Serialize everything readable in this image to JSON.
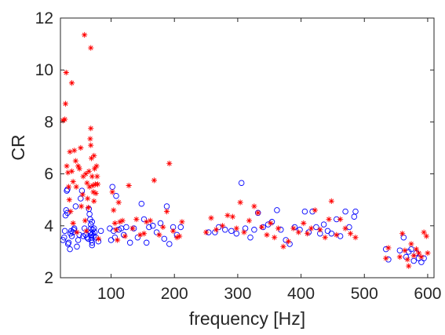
{
  "chart_data": {
    "type": "scatter",
    "title": "",
    "xlabel": "frequency [Hz]",
    "ylabel": "CR",
    "xlim": [
      20,
      610
    ],
    "ylim": [
      2,
      12
    ],
    "xticks": [
      100,
      200,
      300,
      400,
      500,
      600
    ],
    "yticks": [
      2,
      4,
      6,
      8,
      10,
      12
    ],
    "grid": false,
    "legend": "none",
    "series": [
      {
        "marker": "asterisk",
        "color": "#ff0000",
        "points": [
          [
            24,
            8.05
          ],
          [
            27,
            8.1
          ],
          [
            29,
            9.9
          ],
          [
            28,
            8.7
          ],
          [
            30,
            6.3
          ],
          [
            32,
            6.05
          ],
          [
            33,
            5.5
          ],
          [
            34,
            5.0
          ],
          [
            35,
            6.85
          ],
          [
            36,
            4.55
          ],
          [
            38,
            9.5
          ],
          [
            38,
            6.1
          ],
          [
            40,
            5.7
          ],
          [
            40,
            4.1
          ],
          [
            42,
            6.9
          ],
          [
            44,
            6.5
          ],
          [
            45,
            5.5
          ],
          [
            46,
            3.75
          ],
          [
            48,
            6.3
          ],
          [
            50,
            6.2
          ],
          [
            52,
            7.0
          ],
          [
            53,
            4.75
          ],
          [
            55,
            5.2
          ],
          [
            56,
            5.9
          ],
          [
            58,
            11.35
          ],
          [
            59,
            4.2
          ],
          [
            60,
            6.0
          ],
          [
            61,
            3.8
          ],
          [
            62,
            5.65
          ],
          [
            63,
            5.05
          ],
          [
            64,
            4.7
          ],
          [
            65,
            6.1
          ],
          [
            66,
            5.5
          ],
          [
            67,
            7.35
          ],
          [
            68,
            7.1
          ],
          [
            68,
            10.85
          ],
          [
            68,
            7.75
          ],
          [
            69,
            6.6
          ],
          [
            70,
            5.9
          ],
          [
            71,
            5.55
          ],
          [
            72,
            5.3
          ],
          [
            73,
            4.95
          ],
          [
            73,
            6.7
          ],
          [
            74,
            6.2
          ],
          [
            75,
            5.6
          ],
          [
            76,
            5.25
          ],
          [
            77,
            6.3
          ],
          [
            78,
            5.9
          ],
          [
            79,
            5.6
          ],
          [
            80,
            3.5
          ],
          [
            102,
            5.3
          ],
          [
            104,
            4.6
          ],
          [
            106,
            4.1
          ],
          [
            108,
            3.85
          ],
          [
            110,
            3.45
          ],
          [
            112,
            4.9
          ],
          [
            114,
            4.15
          ],
          [
            118,
            4.2
          ],
          [
            122,
            3.6
          ],
          [
            128,
            5.55
          ],
          [
            134,
            3.9
          ],
          [
            140,
            4.25
          ],
          [
            146,
            3.65
          ],
          [
            152,
            3.7
          ],
          [
            156,
            4.15
          ],
          [
            162,
            4.2
          ],
          [
            168,
            5.75
          ],
          [
            176,
            3.65
          ],
          [
            182,
            3.95
          ],
          [
            188,
            4.55
          ],
          [
            192,
            6.4
          ],
          [
            198,
            3.8
          ],
          [
            204,
            3.55
          ],
          [
            208,
            3.6
          ],
          [
            212,
            4.15
          ],
          [
            250,
            3.75
          ],
          [
            258,
            4.3
          ],
          [
            266,
            3.85
          ],
          [
            276,
            4.0
          ],
          [
            284,
            4.4
          ],
          [
            292,
            4.35
          ],
          [
            298,
            3.9
          ],
          [
            304,
            4.9
          ],
          [
            310,
            3.75
          ],
          [
            318,
            4.2
          ],
          [
            326,
            4.75
          ],
          [
            332,
            4.5
          ],
          [
            338,
            3.95
          ],
          [
            346,
            3.65
          ],
          [
            352,
            4.1
          ],
          [
            358,
            3.55
          ],
          [
            364,
            3.9
          ],
          [
            372,
            3.2
          ],
          [
            380,
            3.4
          ],
          [
            388,
            3.9
          ],
          [
            396,
            3.75
          ],
          [
            404,
            4.1
          ],
          [
            410,
            3.7
          ],
          [
            416,
            3.9
          ],
          [
            422,
            4.6
          ],
          [
            430,
            3.85
          ],
          [
            438,
            3.55
          ],
          [
            444,
            4.25
          ],
          [
            448,
            4.95
          ],
          [
            456,
            3.65
          ],
          [
            462,
            4.25
          ],
          [
            470,
            3.9
          ],
          [
            478,
            3.7
          ],
          [
            486,
            3.55
          ],
          [
            534,
            2.75
          ],
          [
            538,
            3.15
          ],
          [
            556,
            2.8
          ],
          [
            560,
            3.7
          ],
          [
            564,
            3.05
          ],
          [
            568,
            2.7
          ],
          [
            570,
            2.45
          ],
          [
            574,
            3.3
          ],
          [
            578,
            2.85
          ],
          [
            582,
            3.1
          ],
          [
            586,
            2.95
          ],
          [
            590,
            2.8
          ],
          [
            594,
            3.75
          ],
          [
            598,
            3.6
          ],
          [
            600,
            2.95
          ]
        ]
      },
      {
        "marker": "circle",
        "color": "#0000ff",
        "points": [
          [
            24,
            3.45
          ],
          [
            26,
            3.55
          ],
          [
            27,
            3.8
          ],
          [
            28,
            4.4
          ],
          [
            29,
            4.6
          ],
          [
            30,
            5.35
          ],
          [
            31,
            5.4
          ],
          [
            31,
            4.5
          ],
          [
            32,
            3.3
          ],
          [
            33,
            3.35
          ],
          [
            35,
            3.1
          ],
          [
            36,
            3.7
          ],
          [
            37,
            3.8
          ],
          [
            38,
            3.6
          ],
          [
            40,
            3.75
          ],
          [
            41,
            3.85
          ],
          [
            42,
            3.9
          ],
          [
            44,
            4.75
          ],
          [
            46,
            3.2
          ],
          [
            48,
            3.45
          ],
          [
            50,
            3.65
          ],
          [
            52,
            5.05
          ],
          [
            54,
            5.35
          ],
          [
            56,
            3.6
          ],
          [
            58,
            3.9
          ],
          [
            60,
            3.65
          ],
          [
            62,
            3.55
          ],
          [
            64,
            3.5
          ],
          [
            65,
            4.65
          ],
          [
            66,
            4.45
          ],
          [
            67,
            4.25
          ],
          [
            68,
            4.05
          ],
          [
            68,
            3.9
          ],
          [
            68,
            3.75
          ],
          [
            69,
            3.65
          ],
          [
            69,
            3.55
          ],
          [
            69,
            3.45
          ],
          [
            70,
            3.35
          ],
          [
            70,
            3.25
          ],
          [
            70,
            4.15
          ],
          [
            71,
            3.85
          ],
          [
            71,
            3.7
          ],
          [
            72,
            3.6
          ],
          [
            73,
            3.9
          ],
          [
            74,
            3.75
          ],
          [
            76,
            3.55
          ],
          [
            80,
            3.4
          ],
          [
            84,
            3.8
          ],
          [
            98,
            3.9
          ],
          [
            100,
            3.45
          ],
          [
            102,
            5.5
          ],
          [
            104,
            3.8
          ],
          [
            106,
            3.55
          ],
          [
            108,
            5.15
          ],
          [
            112,
            3.85
          ],
          [
            116,
            3.9
          ],
          [
            120,
            3.65
          ],
          [
            124,
            3.95
          ],
          [
            130,
            3.35
          ],
          [
            136,
            3.9
          ],
          [
            142,
            3.55
          ],
          [
            148,
            4.85
          ],
          [
            152,
            4.25
          ],
          [
            156,
            3.35
          ],
          [
            160,
            3.95
          ],
          [
            166,
            4.0
          ],
          [
            172,
            3.75
          ],
          [
            178,
            4.1
          ],
          [
            184,
            3.5
          ],
          [
            188,
            4.75
          ],
          [
            192,
            3.3
          ],
          [
            198,
            3.95
          ],
          [
            204,
            3.65
          ],
          [
            210,
            3.95
          ],
          [
            254,
            3.75
          ],
          [
            264,
            3.75
          ],
          [
            270,
            3.95
          ],
          [
            280,
            3.85
          ],
          [
            290,
            3.8
          ],
          [
            298,
            3.7
          ],
          [
            306,
            5.65
          ],
          [
            312,
            3.9
          ],
          [
            320,
            3.55
          ],
          [
            326,
            3.85
          ],
          [
            332,
            4.5
          ],
          [
            340,
            3.95
          ],
          [
            348,
            4.05
          ],
          [
            354,
            4.15
          ],
          [
            362,
            4.6
          ],
          [
            368,
            3.85
          ],
          [
            376,
            3.45
          ],
          [
            382,
            3.3
          ],
          [
            390,
            3.95
          ],
          [
            398,
            3.85
          ],
          [
            406,
            4.55
          ],
          [
            412,
            3.75
          ],
          [
            418,
            4.55
          ],
          [
            424,
            3.95
          ],
          [
            430,
            3.7
          ],
          [
            436,
            4.05
          ],
          [
            442,
            3.8
          ],
          [
            448,
            3.7
          ],
          [
            456,
            4.25
          ],
          [
            462,
            3.6
          ],
          [
            470,
            4.55
          ],
          [
            476,
            3.95
          ],
          [
            484,
            4.35
          ],
          [
            486,
            4.55
          ],
          [
            534,
            3.1
          ],
          [
            538,
            2.7
          ],
          [
            556,
            3.05
          ],
          [
            562,
            3.55
          ],
          [
            566,
            2.8
          ],
          [
            570,
            3.0
          ],
          [
            574,
            3.1
          ],
          [
            578,
            2.65
          ],
          [
            582,
            2.95
          ],
          [
            586,
            2.75
          ],
          [
            590,
            2.6
          ],
          [
            594,
            2.75
          ]
        ]
      }
    ]
  }
}
